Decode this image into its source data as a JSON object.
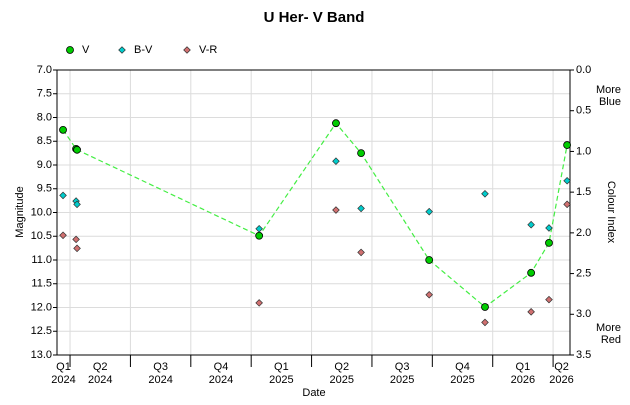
{
  "chart_data": {
    "type": "scatter",
    "title": "U Her- V Band",
    "x_label": "Date",
    "y_label": "Magnitude",
    "y2_label": "Colour Index",
    "annotations": [
      "More\nBlue",
      "More\nRed"
    ],
    "x": [
      2024.221,
      2024.275,
      2024.279,
      2025.033,
      2025.351,
      2025.455,
      2025.737,
      2025.968,
      2026.159,
      2026.233,
      2026.308
    ],
    "xlim": [
      2024.196,
      2026.32
    ],
    "xticks": [
      {
        "value": 2024.0,
        "label": "Q1\n2024"
      },
      {
        "value": 2024.25,
        "label": "Q2\n2024"
      },
      {
        "value": 2024.5,
        "label": "Q3\n2024"
      },
      {
        "value": 2024.75,
        "label": "Q4\n2024"
      },
      {
        "value": 2025.0,
        "label": "Q1\n2025"
      },
      {
        "value": 2025.25,
        "label": "Q2\n2025"
      },
      {
        "value": 2025.5,
        "label": "Q3\n2025"
      },
      {
        "value": 2025.75,
        "label": "Q4\n2025"
      },
      {
        "value": 2026.0,
        "label": "Q1\n2026"
      },
      {
        "value": 2026.25,
        "label": "Q2\n2026"
      }
    ],
    "ylim": [
      7.0,
      13.0
    ],
    "y_inverted": true,
    "yticks": [
      {
        "value": 7.0,
        "label": "7.0"
      },
      7.5,
      {
        "value": 8.0,
        "label": "8.0"
      },
      8.5,
      {
        "value": 9.0,
        "label": "9.0"
      },
      9.5,
      {
        "value": 10.0,
        "label": "10.0"
      },
      10.5,
      {
        "value": 11.0,
        "label": "11.0"
      },
      11.5,
      {
        "value": 12.0,
        "label": "12.0"
      },
      12.5,
      {
        "value": 13.0,
        "label": "13.0"
      }
    ],
    "y2lim": [
      0.0,
      3.5
    ],
    "y2_inverted": true,
    "y2ticks": [
      {
        "value": 0.0,
        "label": "0.0"
      },
      0.5,
      {
        "value": 1.0,
        "label": "1.0"
      },
      1.5,
      {
        "value": 2.0,
        "label": "2.0"
      },
      2.5,
      {
        "value": 3.0,
        "label": "3.0"
      },
      3.5
    ],
    "grid": true,
    "legend": "top-left",
    "series": [
      {
        "name": "V",
        "color": "#00cc00",
        "marker": "circle",
        "line": "dashed",
        "line_color": "#44ee44",
        "values": [
          8.26,
          8.66,
          8.68,
          10.49,
          8.12,
          8.75,
          11.0,
          11.99,
          11.27,
          10.64,
          8.58
        ]
      },
      {
        "name": "B-V",
        "color": "#00cccc",
        "marker": "diamond",
        "axis": "y2",
        "values": [
          1.54,
          1.61,
          1.65,
          1.95,
          1.12,
          1.7,
          1.74,
          1.52,
          1.9,
          1.94,
          1.36
        ]
      },
      {
        "name": "V-R",
        "color": "#d07070",
        "marker": "diamond",
        "axis": "y2",
        "values": [
          2.03,
          2.08,
          2.19,
          2.86,
          1.72,
          2.24,
          2.76,
          3.1,
          2.97,
          2.82,
          1.65
        ]
      }
    ]
  }
}
